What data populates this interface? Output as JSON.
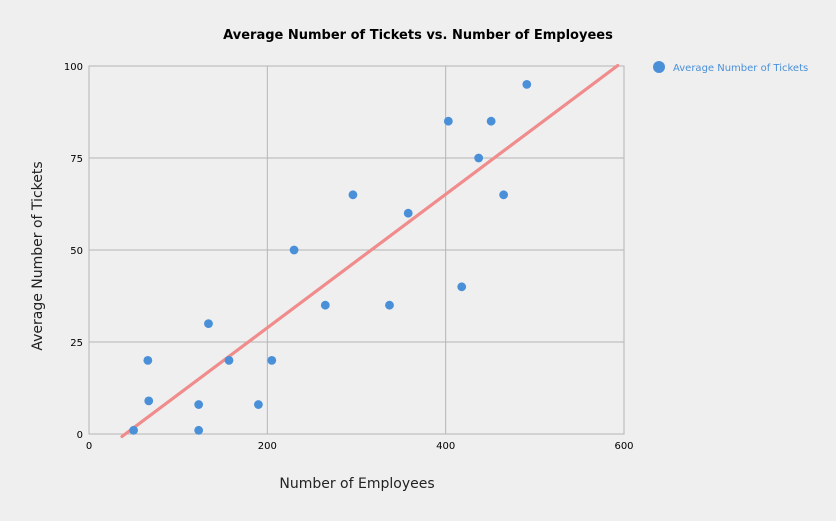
{
  "chart_data": {
    "type": "scatter",
    "title": "Average Number of Tickets vs. Number of Employees",
    "xlabel": "Number of Employees",
    "ylabel": "Average Number of Tickets",
    "xlim": [
      0,
      600
    ],
    "ylim": [
      0,
      100
    ],
    "x_ticks": [
      "0",
      "200",
      "400",
      "600"
    ],
    "y_ticks": [
      "0",
      "25",
      "50",
      "75",
      "100"
    ],
    "grid": true,
    "legend_position": "right",
    "series": [
      {
        "name": "Average Number of Tickets",
        "color": "#4a90d9",
        "points": [
          {
            "x": 50,
            "y": 1
          },
          {
            "x": 66,
            "y": 20
          },
          {
            "x": 67,
            "y": 9
          },
          {
            "x": 123,
            "y": 1
          },
          {
            "x": 123,
            "y": 8
          },
          {
            "x": 134,
            "y": 30
          },
          {
            "x": 157,
            "y": 20
          },
          {
            "x": 190,
            "y": 8
          },
          {
            "x": 205,
            "y": 20
          },
          {
            "x": 230,
            "y": 50
          },
          {
            "x": 265,
            "y": 35
          },
          {
            "x": 296,
            "y": 65
          },
          {
            "x": 337,
            "y": 35
          },
          {
            "x": 358,
            "y": 60
          },
          {
            "x": 403,
            "y": 85
          },
          {
            "x": 418,
            "y": 40
          },
          {
            "x": 437,
            "y": 75
          },
          {
            "x": 451,
            "y": 85
          },
          {
            "x": 465,
            "y": 65
          },
          {
            "x": 491,
            "y": 95
          }
        ]
      }
    ],
    "trendline": {
      "color": "#f08c8c",
      "x_start": 37,
      "x_end": 593
    }
  }
}
